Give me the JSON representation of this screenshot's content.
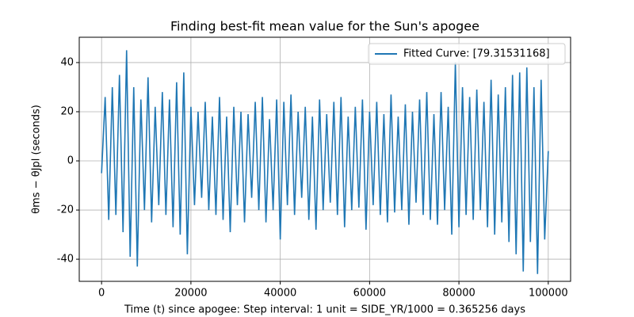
{
  "chart_data": {
    "type": "line",
    "title": "Finding best-fit mean value for the Sun's apogee",
    "x_label": "Time (t) since apogee: Step interval: 1 unit = SIDE_YR/1000 = 0.365256 days",
    "y_label": "θms − θJpl (seconds)",
    "x": [
      0,
      800,
      1600,
      2400,
      3200,
      4000,
      4800,
      5600,
      6400,
      7200,
      8000,
      8800,
      9600,
      10400,
      11200,
      12000,
      12800,
      13600,
      14400,
      15200,
      16000,
      16800,
      17600,
      18400,
      19200,
      20000,
      20800,
      21600,
      22400,
      23200,
      24000,
      24800,
      25600,
      26400,
      27200,
      28000,
      28800,
      29600,
      30400,
      31200,
      32000,
      32800,
      33600,
      34400,
      35200,
      36000,
      36800,
      37600,
      38400,
      39200,
      40000,
      40800,
      41600,
      42400,
      43200,
      44000,
      44800,
      45600,
      46400,
      47200,
      48000,
      48800,
      49600,
      50400,
      51200,
      52000,
      52800,
      53600,
      54400,
      55200,
      56000,
      56800,
      57600,
      58400,
      59200,
      60000,
      60800,
      61600,
      62400,
      63200,
      64000,
      64800,
      65600,
      66400,
      67200,
      68000,
      68800,
      69600,
      70400,
      71200,
      72000,
      72800,
      73600,
      74400,
      75200,
      76000,
      76800,
      77600,
      78400,
      79200,
      80000,
      80800,
      81600,
      82400,
      83200,
      84000,
      84800,
      85600,
      86400,
      87200,
      88000,
      88800,
      89600,
      90400,
      91200,
      92000,
      92800,
      93600,
      94400,
      95200,
      96000,
      96800,
      97600,
      98400,
      99200,
      100000
    ],
    "series": [
      {
        "name": "Fitted Curve: [79.31531168]",
        "color": "#1f77b4",
        "values": [
          -5,
          26,
          -24,
          30,
          -22,
          35,
          -29,
          45,
          -39,
          30,
          -43,
          25,
          -20,
          34,
          -25,
          22,
          -18,
          28,
          -22,
          25,
          -27,
          32,
          -30,
          36,
          -38,
          22,
          -18,
          20,
          -15,
          24,
          -20,
          18,
          -22,
          26,
          -24,
          18,
          -29,
          22,
          -18,
          20,
          -25,
          19,
          -15,
          24,
          -20,
          26,
          -25,
          17,
          -20,
          25,
          -32,
          24,
          -18,
          27,
          -22,
          20,
          -15,
          22,
          -24,
          18,
          -28,
          25,
          -20,
          19,
          -17,
          24,
          -22,
          26,
          -27,
          18,
          -20,
          22,
          -19,
          25,
          -28,
          20,
          -18,
          24,
          -22,
          19,
          -25,
          27,
          -21,
          18,
          -20,
          23,
          -26,
          20,
          -17,
          25,
          -22,
          28,
          -24,
          19,
          -26,
          28,
          -20,
          22,
          -30,
          40,
          -27,
          30,
          -22,
          26,
          -24,
          29,
          -20,
          24,
          -27,
          33,
          -30,
          27,
          -25,
          30,
          -33,
          35,
          -38,
          36,
          -45,
          38,
          -33,
          30,
          -46,
          33,
          -32,
          4
        ]
      }
    ],
    "xlim": [
      -5000,
      105000
    ],
    "ylim": [
      -49,
      50.3
    ],
    "xticks": [
      0,
      20000,
      40000,
      60000,
      80000,
      100000
    ],
    "yticks": [
      -40,
      -20,
      0,
      20,
      40
    ],
    "grid": true,
    "legend": "upper right"
  }
}
